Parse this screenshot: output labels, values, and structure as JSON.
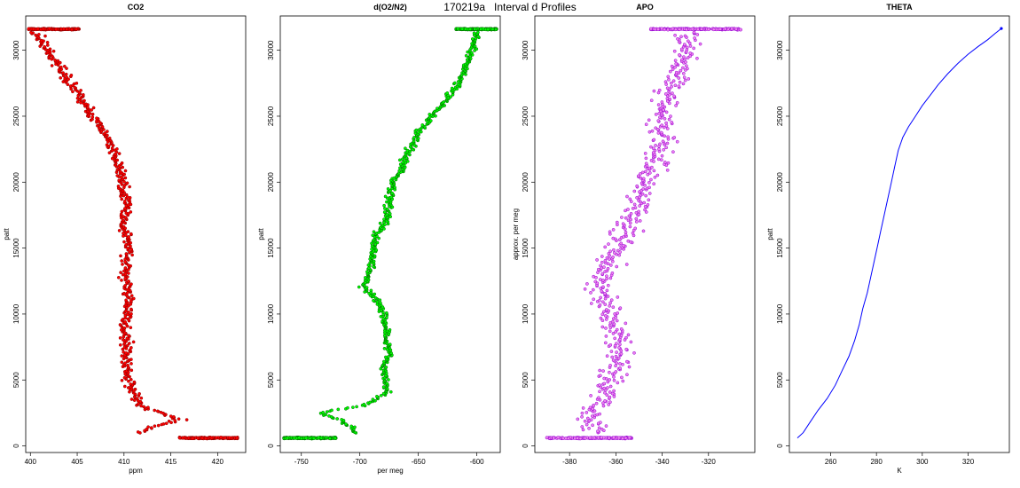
{
  "title": "170219a   Interval d Profiles",
  "chart_data": [
    {
      "type": "scatter",
      "title": "CO2",
      "xlabel": "ppm",
      "ylabel": "patt",
      "xlim": [
        399.5,
        423
      ],
      "ylim": [
        -500,
        32600
      ],
      "xticks": [
        "400",
        "405",
        "410",
        "415",
        "420"
      ],
      "xtick_values": [
        400,
        405,
        410,
        415,
        420
      ],
      "yticks": [
        "0",
        "5000",
        "10000",
        "15000",
        "20000",
        "25000",
        "30000"
      ],
      "ytick_values": [
        0,
        5000,
        10000,
        15000,
        20000,
        25000,
        30000
      ],
      "point_color": "#ff0000",
      "outline_color": "#8b0000",
      "clusters": [
        {
          "x": [
            399.8,
            405.2
          ],
          "y": 31600,
          "n": 140
        },
        {
          "x": [
            415.8,
            422.2
          ],
          "y": 600,
          "n": 160
        }
      ],
      "profile": [
        [
          31600,
          400.3
        ],
        [
          31000,
          401
        ],
        [
          30000,
          401.8
        ],
        [
          29000,
          402.8
        ],
        [
          28000,
          403.8
        ],
        [
          27000,
          404.8
        ],
        [
          26000,
          405.8
        ],
        [
          25000,
          406.6
        ],
        [
          24000,
          407.6
        ],
        [
          23000,
          408.4
        ],
        [
          22000,
          409
        ],
        [
          21000,
          409.5
        ],
        [
          20000,
          409.8
        ],
        [
          19000,
          410.1
        ],
        [
          18000,
          410.2
        ],
        [
          17000,
          409.8
        ],
        [
          16000,
          410.2
        ],
        [
          15000,
          410.4
        ],
        [
          14000,
          410.3
        ],
        [
          13000,
          410
        ],
        [
          12000,
          410.3
        ],
        [
          11000,
          410.6
        ],
        [
          10000,
          410.3
        ],
        [
          9000,
          410
        ],
        [
          8000,
          410.3
        ],
        [
          7000,
          410.4
        ],
        [
          6000,
          410.2
        ],
        [
          5000,
          410.5
        ],
        [
          4000,
          411
        ],
        [
          3000,
          411.6
        ],
        [
          2500,
          414
        ],
        [
          2000,
          416
        ],
        [
          1500,
          413.5
        ],
        [
          1000,
          411.3
        ],
        [
          700,
          416
        ]
      ],
      "spread": 0.9
    },
    {
      "type": "scatter",
      "title": "d(O2/N2)",
      "xlabel": "per meg",
      "ylabel": "patt",
      "xlim": [
        -768,
        -580
      ],
      "ylim": [
        -500,
        32600
      ],
      "xticks": [
        "-750",
        "-700",
        "-650",
        "-600"
      ],
      "xtick_values": [
        -750,
        -700,
        -650,
        -600
      ],
      "yticks": [
        "0",
        "5000",
        "10000",
        "15000",
        "20000",
        "25000",
        "30000"
      ],
      "ytick_values": [
        0,
        5000,
        10000,
        15000,
        20000,
        25000,
        30000
      ],
      "point_color": "#00ff00",
      "outline_color": "#006400",
      "clusters": [
        {
          "x": [
            -618,
            -583
          ],
          "y": 31600,
          "n": 140
        },
        {
          "x": [
            -765,
            -720
          ],
          "y": 600,
          "n": 160
        }
      ],
      "profile": [
        [
          31600,
          -600
        ],
        [
          30000,
          -604
        ],
        [
          29000,
          -609
        ],
        [
          28000,
          -612
        ],
        [
          27000,
          -620
        ],
        [
          26000,
          -628
        ],
        [
          25000,
          -638
        ],
        [
          24000,
          -648
        ],
        [
          23000,
          -654
        ],
        [
          22000,
          -660
        ],
        [
          21000,
          -664
        ],
        [
          20000,
          -672
        ],
        [
          19000,
          -674
        ],
        [
          18000,
          -676
        ],
        [
          17000,
          -678
        ],
        [
          16000,
          -686
        ],
        [
          15000,
          -688
        ],
        [
          14000,
          -690
        ],
        [
          13000,
          -692
        ],
        [
          12000,
          -697
        ],
        [
          11000,
          -684
        ],
        [
          10000,
          -680
        ],
        [
          9000,
          -678
        ],
        [
          8000,
          -678
        ],
        [
          7000,
          -673
        ],
        [
          6000,
          -680
        ],
        [
          5000,
          -678
        ],
        [
          4000,
          -676
        ],
        [
          3000,
          -700
        ],
        [
          2500,
          -735
        ],
        [
          2000,
          -718
        ],
        [
          1500,
          -708
        ],
        [
          1000,
          -705
        ],
        [
          700,
          -740
        ]
      ],
      "spread": 5
    },
    {
      "type": "scatter",
      "title": "APO",
      "xlabel": "",
      "ylabel": "approx. per meg",
      "xlim": [
        -395,
        -300
      ],
      "ylim": [
        -500,
        32600
      ],
      "xticks": [
        "-380",
        "-360",
        "-340",
        "-320"
      ],
      "xtick_values": [
        -380,
        -360,
        -340,
        -320
      ],
      "yticks": [
        "0",
        "5000",
        "10000",
        "15000",
        "20000",
        "25000",
        "30000"
      ],
      "ytick_values": [
        0,
        5000,
        10000,
        15000,
        20000,
        25000,
        30000
      ],
      "point_color": "#ee82ee",
      "outline_color": "#9400d3",
      "clusters": [
        {
          "x": [
            -345,
            -306
          ],
          "y": 31600,
          "n": 140
        },
        {
          "x": [
            -390,
            -353
          ],
          "y": 600,
          "n": 160
        }
      ],
      "profile": [
        [
          31600,
          -328
        ],
        [
          30000,
          -330
        ],
        [
          28000,
          -334
        ],
        [
          26000,
          -338
        ],
        [
          24000,
          -340
        ],
        [
          22000,
          -341
        ],
        [
          20000,
          -348
        ],
        [
          18000,
          -352
        ],
        [
          16000,
          -356
        ],
        [
          14000,
          -362
        ],
        [
          12000,
          -368
        ],
        [
          10000,
          -362
        ],
        [
          8000,
          -358
        ],
        [
          6000,
          -360
        ],
        [
          4000,
          -364
        ],
        [
          2000,
          -372
        ],
        [
          700,
          -365
        ]
      ],
      "spread": 9
    },
    {
      "type": "line",
      "title": "THETA",
      "xlabel": "K",
      "ylabel": "patt",
      "xlim": [
        242,
        338
      ],
      "ylim": [
        -500,
        32600
      ],
      "xticks": [
        "260",
        "280",
        "300",
        "320"
      ],
      "xtick_values": [
        260,
        280,
        300,
        320
      ],
      "yticks": [
        "0",
        "5000",
        "10000",
        "15000",
        "20000",
        "25000",
        "30000"
      ],
      "ytick_values": [
        0,
        5000,
        10000,
        15000,
        20000,
        25000,
        30000
      ],
      "line_color": "#0000ff",
      "x": [
        245.5,
        248,
        251,
        254.5,
        258.5,
        262,
        265,
        268,
        270.5,
        272.5,
        274,
        276,
        277.5,
        279,
        280.5,
        282,
        283.5,
        285,
        286.5,
        288,
        289.5,
        291.5,
        294,
        297,
        300,
        303.5,
        307,
        311,
        315.5,
        320,
        324.5,
        328.5,
        332,
        334.5
      ],
      "y": [
        600,
        1000,
        1800,
        2700,
        3600,
        4600,
        5700,
        6800,
        8000,
        9200,
        10400,
        11600,
        12800,
        14000,
        15200,
        16400,
        17600,
        18800,
        20000,
        21200,
        22400,
        23400,
        24200,
        25000,
        25800,
        26600,
        27400,
        28200,
        29000,
        29700,
        30300,
        30800,
        31300,
        31650
      ]
    }
  ]
}
